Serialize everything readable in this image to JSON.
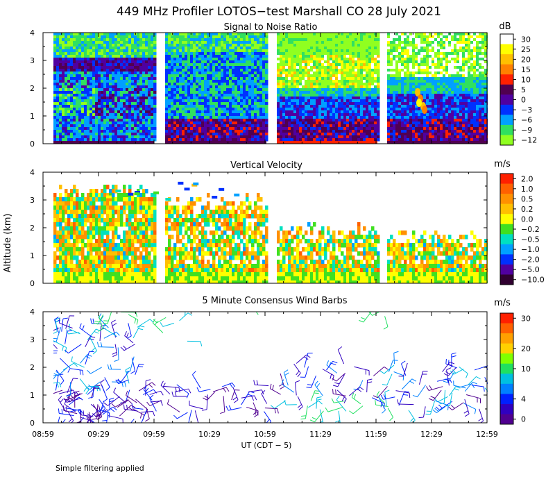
{
  "title": "449 MHz Profiler LOTOS−test Marshall CO 28 July 2021",
  "footer_note": "Simple filtering applied",
  "colors": {
    "frame": "#000000",
    "white": "#ffffff"
  },
  "chart_data": [
    {
      "type": "heatmap",
      "title": "Signal to Noise Ratio",
      "units": "dB",
      "xlabel": "UT  (CDT − 5)",
      "ylabel": "Altitude (km)",
      "xlim": [
        "08:59",
        "12:59"
      ],
      "ylim": [
        0,
        4
      ],
      "y_ticks": [
        "0",
        "1",
        "2",
        "3",
        "4"
      ],
      "x_ticks": [
        "08:59",
        "09:29",
        "09:59",
        "10:29",
        "10:59",
        "11:29",
        "11:59",
        "12:29",
        "12:59"
      ],
      "data_gaps_ut": [
        [
          "09:58",
          "10:02"
        ],
        [
          "10:57",
          "11:01"
        ],
        [
          "11:57",
          "12:01"
        ]
      ],
      "colorbar": {
        "labels": [
          "30",
          "25",
          "20",
          "15",
          "10",
          "5",
          "0",
          "−3",
          "−6",
          "−9",
          "−12"
        ],
        "colors": [
          "#ffffff",
          "#ffff00",
          "#ffc000",
          "#ff8000",
          "#ff2000",
          "#500050",
          "#5000a0",
          "#0030ff",
          "#00a0ff",
          "#30e060",
          "#90ff20"
        ]
      }
    },
    {
      "type": "heatmap",
      "title": "Vertical Velocity",
      "units": "m/s",
      "xlabel": "UT  (CDT − 5)",
      "ylabel": "Altitude (km)",
      "xlim": [
        "08:59",
        "12:59"
      ],
      "ylim": [
        0,
        4
      ],
      "y_ticks": [
        "0",
        "1",
        "2",
        "3",
        "4"
      ],
      "x_ticks": [
        "08:59",
        "09:29",
        "09:59",
        "10:29",
        "10:59",
        "11:29",
        "11:59",
        "12:29",
        "12:59"
      ],
      "colorbar": {
        "labels": [
          "2.0",
          "1.0",
          "0.5",
          "0.2",
          "0.0",
          "−0.2",
          "−0.5",
          "−1.0",
          "−2.0",
          "−5.0",
          "−10.0"
        ],
        "colors": [
          "#ff2000",
          "#ff6000",
          "#ff9000",
          "#ffc000",
          "#ffff00",
          "#40e020",
          "#00e0c0",
          "#00a0ff",
          "#0030ff",
          "#5000a0",
          "#300030"
        ]
      }
    },
    {
      "type": "scatter",
      "title": "5 Minute Consensus Wind Barbs",
      "units": "m/s",
      "xlabel": "UT  (CDT − 5)",
      "ylabel": "Altitude (km)",
      "xlim": [
        "08:59",
        "12:59"
      ],
      "ylim": [
        0,
        4
      ],
      "y_ticks": [
        "0",
        "1",
        "2",
        "3",
        "4"
      ],
      "x_ticks": [
        "08:59",
        "09:29",
        "09:59",
        "10:29",
        "10:59",
        "11:29",
        "11:59",
        "12:29",
        "12:59"
      ],
      "colorbar": {
        "labels": [
          "30",
          "20",
          "10",
          "4",
          "0"
        ],
        "colors": [
          "#ff2000",
          "#ff6000",
          "#ffa000",
          "#ffd000",
          "#80ff00",
          "#20e060",
          "#00c0e0",
          "#0080ff",
          "#0020ff",
          "#3000c0",
          "#500090"
        ]
      }
    }
  ]
}
